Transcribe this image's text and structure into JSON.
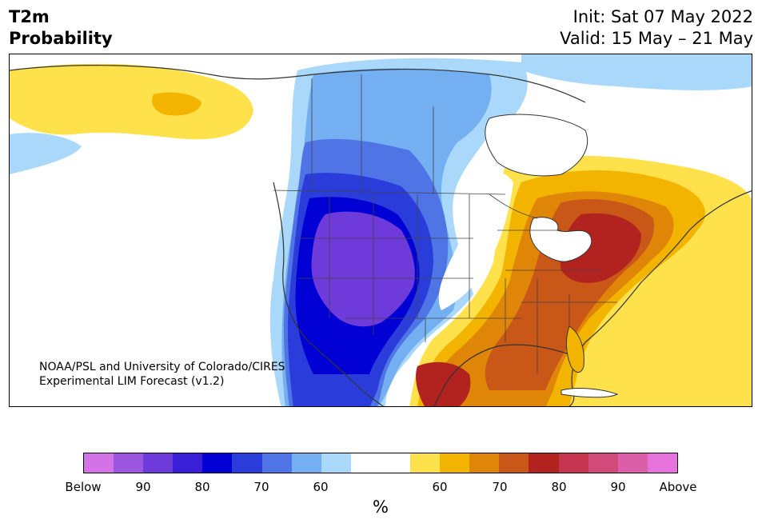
{
  "header": {
    "title_line1": "T2m",
    "title_line2": "Probability",
    "init": "Init: Sat 07 May 2022",
    "valid": "Valid: 15 May – 21 May"
  },
  "credit": {
    "line1": "NOAA/PSL and University of Colorado/CIRES",
    "line2": "Experimental LIM Forecast (v1.2)"
  },
  "colorbar": {
    "colors": [
      "#d473e8",
      "#9c57e0",
      "#6e3ad9",
      "#3b1fd8",
      "#0000d4",
      "#2a3ddb",
      "#4f74e6",
      "#73aff1",
      "#a9d8fa",
      "#ffffff",
      "#ffffff",
      "#ffe14b",
      "#f3b400",
      "#df8508",
      "#c85718",
      "#b2221f",
      "#c53550",
      "#d04b7a",
      "#da5fa8",
      "#e673dc"
    ],
    "ticks": [
      "Below",
      "90",
      "80",
      "70",
      "60",
      "60",
      "70",
      "80",
      "90",
      "Above"
    ],
    "unit": "%"
  },
  "map": {
    "description_colors": {
      "cold_strong": "#6e3ad9",
      "hot_strong": "#b2221f"
    }
  }
}
